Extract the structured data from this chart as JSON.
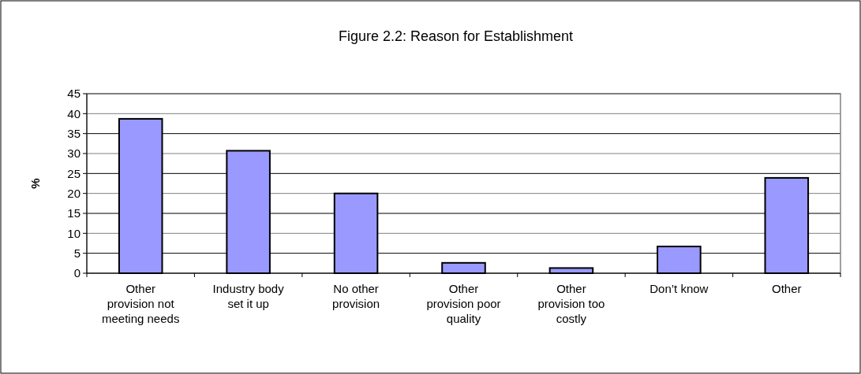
{
  "chart_data": {
    "type": "bar",
    "title": "Figure 2.2: Reason for Establishment",
    "ylabel": "%",
    "categories": [
      "Other provision not meeting needs",
      "Industry body set it up",
      "No other provision",
      "Other provision poor quality",
      "Other provision too costly",
      "Don’t know",
      "Other"
    ],
    "values": [
      38.7,
      30.7,
      20.0,
      2.6,
      1.3,
      6.7,
      23.9
    ],
    "color": "#9999ff",
    "ylim": [
      0,
      45
    ],
    "yticks": [
      0,
      5,
      10,
      15,
      20,
      25,
      30,
      35,
      40,
      45
    ],
    "grid": "y"
  }
}
